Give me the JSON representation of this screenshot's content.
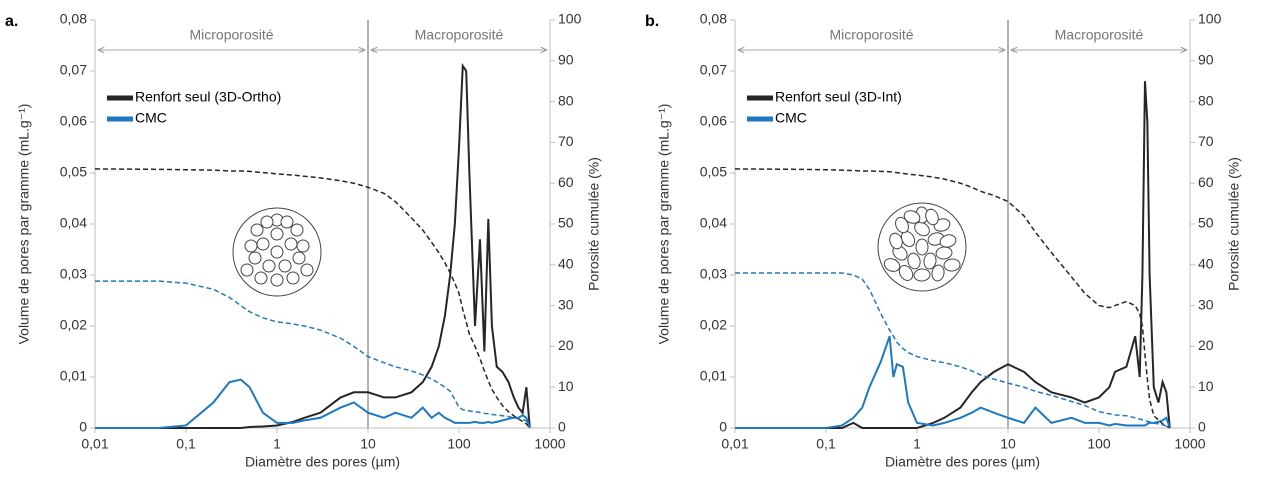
{
  "chart_data": [
    {
      "type": "line",
      "panel_label": "a.",
      "log_x": true,
      "legend": "upper left",
      "xlabel": "Diamètre des pores (µm)",
      "ylabel": "Volume de pores par gramme (mL.g⁻¹)",
      "y2label": "Porosité cumulée (%)",
      "annotations": [
        "Microporosité",
        "Macroporosité"
      ],
      "vline": 10,
      "xlim": [
        0.01,
        1000
      ],
      "xticks": [
        {
          "value": 0.01,
          "label": "0,01"
        },
        {
          "value": 0.1,
          "label": "0,1"
        },
        1,
        10,
        100,
        1000
      ],
      "ylim": [
        0,
        0.08
      ],
      "yticks": [
        0,
        {
          "value": 0.01,
          "label": "0,01"
        },
        {
          "value": 0.02,
          "label": "0,02"
        },
        {
          "value": 0.03,
          "label": "0,03"
        },
        {
          "value": 0.04,
          "label": "0,04"
        },
        {
          "value": 0.05,
          "label": "0,05"
        },
        {
          "value": 0.06,
          "label": "0,06"
        },
        {
          "value": 0.07,
          "label": "0,07"
        },
        {
          "value": 0.08,
          "label": "0,08"
        }
      ],
      "y2lim": [
        0,
        100
      ],
      "y2ticks": [
        0,
        10,
        20,
        30,
        40,
        50,
        60,
        70,
        80,
        90,
        100
      ],
      "x": [
        0.01,
        0.05,
        0.1,
        0.2,
        0.3,
        0.4,
        0.5,
        0.7,
        1,
        1.5,
        2,
        3,
        5,
        7,
        10,
        15,
        20,
        30,
        40,
        50,
        60,
        70,
        80,
        90,
        100,
        110,
        120,
        130,
        150,
        170,
        190,
        210,
        230,
        260,
        300,
        350,
        400,
        450,
        500,
        550,
        600
      ],
      "series": [
        {
          "name": "Renfort seul (3D-Ortho)",
          "color": "#262626",
          "dash": false,
          "values": [
            0,
            0,
            0,
            0,
            0,
            0,
            0.0002,
            0.0003,
            0.0005,
            0.0012,
            0.002,
            0.003,
            0.006,
            0.007,
            0.007,
            0.006,
            0.006,
            0.007,
            0.009,
            0.012,
            0.016,
            0.022,
            0.03,
            0.04,
            0.055,
            0.071,
            0.07,
            0.05,
            0.02,
            0.037,
            0.015,
            0.041,
            0.02,
            0.012,
            0.011,
            0.009,
            0.006,
            0.004,
            0.003,
            0.008,
            0
          ]
        },
        {
          "name": "CMC",
          "color": "#1f78c1",
          "dash": false,
          "values": [
            0,
            0,
            0.0005,
            0.005,
            0.009,
            0.0095,
            0.008,
            0.003,
            0.001,
            0.001,
            0.0015,
            0.002,
            0.004,
            0.005,
            0.003,
            0.002,
            0.003,
            0.002,
            0.004,
            0.002,
            0.003,
            0.002,
            0.0015,
            0.001,
            0.001,
            0.001,
            0.001,
            0.001,
            0.0012,
            0.001,
            0.001,
            0.0012,
            0.001,
            0.0012,
            0.0015,
            0.0018,
            0.002,
            0.002,
            0.0025,
            0.002,
            0
          ]
        },
        {
          "color": "#262626",
          "dash": true,
          "axis": "y2",
          "values": [
            63.5,
            63.4,
            63.3,
            63.2,
            63,
            63,
            62.9,
            62.6,
            62.3,
            62,
            61.7,
            61.3,
            60.6,
            60,
            59,
            57.5,
            55.5,
            51.5,
            48.5,
            45.5,
            43,
            40.5,
            38,
            35.5,
            33,
            29,
            26,
            23,
            20,
            17,
            14,
            11.5,
            9.5,
            7.5,
            5.5,
            4,
            3,
            2.2,
            1.6,
            1,
            0
          ]
        },
        {
          "color": "#1f78c1",
          "dash": true,
          "axis": "y2",
          "values": [
            36,
            36,
            35.5,
            34,
            32,
            30,
            28.5,
            27,
            26,
            25.5,
            25,
            24,
            22,
            20,
            17.5,
            16,
            15,
            14,
            13,
            12,
            11,
            10,
            9,
            7,
            5,
            4.5,
            4.3,
            4.2,
            4,
            3.8,
            3.6,
            3.5,
            3.3,
            3.2,
            3,
            2.8,
            2.5,
            2.3,
            2,
            1.8,
            0
          ]
        }
      ]
    },
    {
      "type": "line",
      "panel_label": "b.",
      "log_x": true,
      "legend": "upper left",
      "xlabel": "Diamètre des pores (µm)",
      "ylabel": "Volume de pores par gramme (mL.g⁻¹)",
      "y2label": "Porosité cumulée (%)",
      "annotations": [
        "Microporosité",
        "Macroporosité"
      ],
      "vline": 10,
      "xlim": [
        0.01,
        1000
      ],
      "xticks": [
        {
          "value": 0.01,
          "label": "0,01"
        },
        {
          "value": 0.1,
          "label": "0,1"
        },
        1,
        10,
        100,
        1000
      ],
      "ylim": [
        0,
        0.08
      ],
      "yticks": [
        0,
        {
          "value": 0.01,
          "label": "0,01"
        },
        {
          "value": 0.02,
          "label": "0,02"
        },
        {
          "value": 0.03,
          "label": "0,03"
        },
        {
          "value": 0.04,
          "label": "0,04"
        },
        {
          "value": 0.05,
          "label": "0,05"
        },
        {
          "value": 0.06,
          "label": "0,06"
        },
        {
          "value": 0.07,
          "label": "0,07"
        },
        {
          "value": 0.08,
          "label": "0,08"
        }
      ],
      "y2lim": [
        0,
        100
      ],
      "y2ticks": [
        0,
        10,
        20,
        30,
        40,
        50,
        60,
        70,
        80,
        90,
        100
      ],
      "x": [
        0.01,
        0.05,
        0.1,
        0.15,
        0.2,
        0.25,
        0.3,
        0.4,
        0.5,
        0.55,
        0.6,
        0.7,
        0.8,
        1,
        1.5,
        2,
        3,
        4,
        5,
        7,
        10,
        15,
        20,
        30,
        50,
        70,
        100,
        130,
        150,
        200,
        250,
        280,
        300,
        320,
        340,
        360,
        400,
        450,
        500,
        550,
        600
      ],
      "series": [
        {
          "name": "Renfort seul (3D-Int)",
          "color": "#262626",
          "dash": false,
          "values": [
            0,
            0,
            0,
            0,
            0.001,
            0,
            0,
            0,
            0,
            0,
            0,
            0,
            0,
            0,
            0.001,
            0.002,
            0.004,
            0.007,
            0.009,
            0.011,
            0.0125,
            0.011,
            0.009,
            0.007,
            0.006,
            0.005,
            0.006,
            0.008,
            0.011,
            0.012,
            0.018,
            0.01,
            0.03,
            0.068,
            0.06,
            0.03,
            0.008,
            0.005,
            0.009,
            0.007,
            0
          ]
        },
        {
          "name": "CMC",
          "color": "#1f78c1",
          "dash": false,
          "values": [
            0,
            0,
            0,
            0.0005,
            0.002,
            0.004,
            0.008,
            0.013,
            0.018,
            0.01,
            0.0125,
            0.012,
            0.005,
            0.001,
            0.0005,
            0.001,
            0.002,
            0.003,
            0.004,
            0.003,
            0.002,
            0.001,
            0.004,
            0.001,
            0.002,
            0.001,
            0.001,
            0.0005,
            0.0008,
            0.0005,
            0.0005,
            0.0005,
            0.0005,
            0.0005,
            0.0008,
            0.001,
            0.001,
            0.0012,
            0.0015,
            0.002,
            0
          ]
        },
        {
          "color": "#262626",
          "dash": true,
          "axis": "y2",
          "values": [
            63.5,
            63.4,
            63.3,
            63.2,
            63.1,
            63,
            63,
            62.9,
            62.8,
            62.7,
            62.6,
            62.4,
            62.2,
            62,
            61.5,
            61,
            60,
            59,
            58,
            57,
            55.5,
            52,
            48,
            43,
            37,
            33,
            30,
            29.5,
            30,
            31,
            30,
            28,
            25,
            18,
            12,
            7,
            3,
            2,
            1,
            0.5,
            0
          ]
        },
        {
          "color": "#1f78c1",
          "dash": true,
          "axis": "y2",
          "values": [
            38,
            38,
            38,
            38,
            37.5,
            36.5,
            34,
            28,
            24,
            22.5,
            21,
            19.5,
            18.5,
            17.5,
            16.5,
            16,
            15,
            14,
            13,
            12,
            11,
            10,
            9,
            8,
            6.5,
            5.5,
            4,
            3.5,
            3.2,
            3,
            2.5,
            2.2,
            2,
            1.8,
            1.6,
            1.5,
            1.2,
            1,
            0.8,
            0.5,
            0
          ]
        }
      ]
    }
  ]
}
